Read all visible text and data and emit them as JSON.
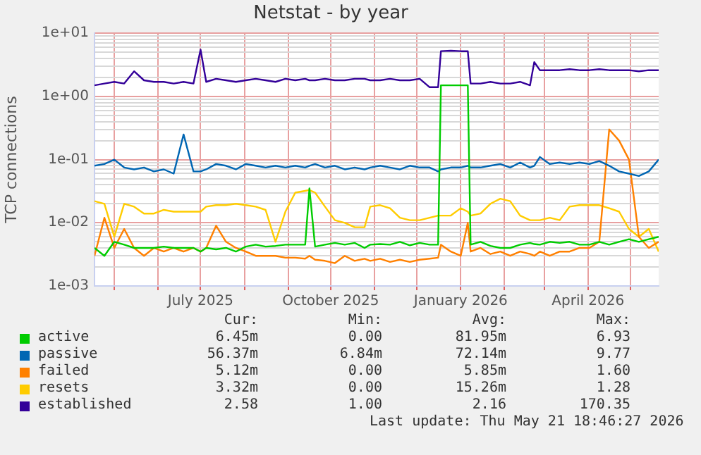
{
  "chart_data": {
    "type": "line",
    "title": "Netstat - by year",
    "ylabel": "TCP connections",
    "log": true,
    "grid": true,
    "legend": "bottom",
    "line_style": "solid",
    "xlim": [
      "2025-04-17",
      "2026-05-21"
    ],
    "xticks": [
      {
        "value": "2025-05-01",
        "label": null
      },
      {
        "value": "2025-06-01",
        "label": null
      },
      {
        "value": "2025-07-01",
        "label": "July 2025"
      },
      {
        "value": "2025-08-01",
        "label": null
      },
      {
        "value": "2025-09-01",
        "label": null
      },
      {
        "value": "2025-10-01",
        "label": "October 2025"
      },
      {
        "value": "2025-11-01",
        "label": null
      },
      {
        "value": "2025-12-01",
        "label": null
      },
      {
        "value": "2026-01-01",
        "label": "January 2026"
      },
      {
        "value": "2026-02-01",
        "label": null
      },
      {
        "value": "2026-03-01",
        "label": null
      },
      {
        "value": "2026-04-01",
        "label": "April 2026"
      },
      {
        "value": "2026-05-01",
        "label": null
      }
    ],
    "ylim": [
      0.001,
      10
    ],
    "yticks": [
      {
        "value": 0.001,
        "label": "1e-03"
      },
      {
        "value": 0.002,
        "label": null
      },
      {
        "value": 0.003,
        "label": null
      },
      {
        "value": 0.004,
        "label": null
      },
      {
        "value": 0.005,
        "label": null
      },
      {
        "value": 0.006,
        "label": null
      },
      {
        "value": 0.007,
        "label": null
      },
      {
        "value": 0.008,
        "label": null
      },
      {
        "value": 0.009,
        "label": null
      },
      {
        "value": 0.01,
        "label": "1e-02"
      },
      {
        "value": 0.02,
        "label": null
      },
      {
        "value": 0.03,
        "label": null
      },
      {
        "value": 0.04,
        "label": null
      },
      {
        "value": 0.05,
        "label": null
      },
      {
        "value": 0.06,
        "label": null
      },
      {
        "value": 0.07,
        "label": null
      },
      {
        "value": 0.08,
        "label": null
      },
      {
        "value": 0.09,
        "label": null
      },
      {
        "value": 0.1,
        "label": "1e-01"
      },
      {
        "value": 0.2,
        "label": null
      },
      {
        "value": 0.3,
        "label": null
      },
      {
        "value": 0.4,
        "label": null
      },
      {
        "value": 0.5,
        "label": null
      },
      {
        "value": 0.6,
        "label": null
      },
      {
        "value": 0.7,
        "label": null
      },
      {
        "value": 0.8,
        "label": null
      },
      {
        "value": 0.9,
        "label": null
      },
      {
        "value": 1,
        "label": "1e+00"
      },
      {
        "value": 2,
        "label": null
      },
      {
        "value": 3,
        "label": null
      },
      {
        "value": 4,
        "label": null
      },
      {
        "value": 5,
        "label": null
      },
      {
        "value": 6,
        "label": null
      },
      {
        "value": 7,
        "label": null
      },
      {
        "value": 8,
        "label": null
      },
      {
        "value": 9,
        "label": null
      },
      {
        "value": 10,
        "label": "1e+01"
      }
    ],
    "x": [
      "2025-04-17",
      "2025-04-24",
      "2025-05-01",
      "2025-05-08",
      "2025-05-15",
      "2025-05-22",
      "2025-05-29",
      "2025-06-05",
      "2025-06-12",
      "2025-06-19",
      "2025-06-26",
      "2025-07-01",
      "2025-07-05",
      "2025-07-12",
      "2025-07-19",
      "2025-07-26",
      "2025-08-02",
      "2025-08-09",
      "2025-08-16",
      "2025-08-23",
      "2025-08-30",
      "2025-09-06",
      "2025-09-13",
      "2025-09-16",
      "2025-09-20",
      "2025-09-27",
      "2025-10-04",
      "2025-10-11",
      "2025-10-18",
      "2025-10-25",
      "2025-10-29",
      "2025-11-05",
      "2025-11-12",
      "2025-11-19",
      "2025-11-26",
      "2025-12-03",
      "2025-12-10",
      "2025-12-16",
      "2025-12-18",
      "2025-12-25",
      "2026-01-01",
      "2026-01-06",
      "2026-01-08",
      "2026-01-15",
      "2026-01-22",
      "2026-01-29",
      "2026-02-05",
      "2026-02-12",
      "2026-02-19",
      "2026-02-22",
      "2026-02-26",
      "2026-03-05",
      "2026-03-12",
      "2026-03-19",
      "2026-03-26",
      "2026-04-02",
      "2026-04-09",
      "2026-04-16",
      "2026-04-23",
      "2026-04-30",
      "2026-05-07",
      "2026-05-14",
      "2026-05-21"
    ],
    "series": [
      {
        "name": "active",
        "color": "#00cc00",
        "values": [
          0.004,
          0.003,
          0.005,
          0.0045,
          0.004,
          0.004,
          0.004,
          0.0042,
          0.004,
          0.004,
          0.004,
          0.0035,
          0.004,
          0.0038,
          0.004,
          0.0035,
          0.0042,
          0.0045,
          0.0042,
          0.0043,
          0.0045,
          0.0045,
          0.0045,
          0.035,
          0.0042,
          0.0045,
          0.0048,
          0.0045,
          0.0048,
          0.004,
          0.0045,
          0.0046,
          0.0045,
          0.005,
          0.0044,
          0.0048,
          0.0045,
          0.0045,
          1.5,
          1.5,
          1.5,
          1.5,
          0.0045,
          0.005,
          0.0043,
          0.004,
          0.004,
          0.0045,
          0.0048,
          0.0046,
          0.0045,
          0.005,
          0.0048,
          0.005,
          0.0045,
          0.0045,
          0.005,
          0.0045,
          0.005,
          0.0055,
          0.005,
          0.0055,
          0.006
        ]
      },
      {
        "name": "passive",
        "color": "#0066b3",
        "values": [
          0.08,
          0.085,
          0.1,
          0.075,
          0.07,
          0.075,
          0.065,
          0.07,
          0.06,
          0.25,
          0.065,
          0.065,
          0.07,
          0.085,
          0.08,
          0.07,
          0.085,
          0.08,
          0.075,
          0.08,
          0.075,
          0.08,
          0.075,
          0.08,
          0.085,
          0.075,
          0.08,
          0.07,
          0.075,
          0.07,
          0.075,
          0.08,
          0.075,
          0.07,
          0.08,
          0.075,
          0.075,
          0.065,
          0.07,
          0.075,
          0.075,
          0.08,
          0.075,
          0.075,
          0.08,
          0.085,
          0.075,
          0.09,
          0.075,
          0.08,
          0.11,
          0.085,
          0.09,
          0.085,
          0.09,
          0.085,
          0.095,
          0.08,
          0.065,
          0.06,
          0.055,
          0.065,
          0.1
        ]
      },
      {
        "name": "failed",
        "color": "#ff8000",
        "values": [
          0.003,
          0.012,
          0.004,
          0.008,
          0.004,
          0.003,
          0.004,
          0.0035,
          0.004,
          0.0035,
          0.004,
          0.0035,
          0.004,
          0.009,
          0.005,
          0.004,
          0.0035,
          0.003,
          0.003,
          0.003,
          0.0028,
          0.0028,
          0.0027,
          0.003,
          0.0026,
          0.0025,
          0.0023,
          0.003,
          0.0025,
          0.0027,
          0.0025,
          0.0027,
          0.0024,
          0.0026,
          0.0024,
          0.0026,
          0.0027,
          0.0028,
          0.0045,
          0.0035,
          0.003,
          0.01,
          0.0035,
          0.004,
          0.0032,
          0.0035,
          0.003,
          0.0035,
          0.0032,
          0.003,
          0.0035,
          0.003,
          0.0035,
          0.0035,
          0.004,
          0.004,
          0.005,
          0.3,
          0.2,
          0.1,
          0.006,
          0.004,
          0.005
        ]
      },
      {
        "name": "resets",
        "color": "#ffcc00",
        "values": [
          0.022,
          0.02,
          0.006,
          0.02,
          0.018,
          0.014,
          0.014,
          0.016,
          0.015,
          0.015,
          0.015,
          0.015,
          0.018,
          0.019,
          0.019,
          0.02,
          0.019,
          0.018,
          0.016,
          0.005,
          0.015,
          0.03,
          0.032,
          0.033,
          0.03,
          0.018,
          0.011,
          0.01,
          0.0085,
          0.0085,
          0.018,
          0.019,
          0.017,
          0.012,
          0.011,
          0.011,
          0.012,
          0.013,
          0.013,
          0.013,
          0.017,
          0.015,
          0.013,
          0.014,
          0.02,
          0.024,
          0.022,
          0.013,
          0.011,
          0.011,
          0.011,
          0.012,
          0.011,
          0.018,
          0.019,
          0.019,
          0.019,
          0.017,
          0.015,
          0.008,
          0.006,
          0.008,
          0.0035
        ]
      },
      {
        "name": "established",
        "color": "#330099",
        "values": [
          1.5,
          1.6,
          1.7,
          1.6,
          2.5,
          1.8,
          1.7,
          1.7,
          1.6,
          1.7,
          1.6,
          5.5,
          1.7,
          1.9,
          1.8,
          1.7,
          1.8,
          1.9,
          1.8,
          1.7,
          1.9,
          1.8,
          1.9,
          1.8,
          1.8,
          1.9,
          1.8,
          1.8,
          1.9,
          1.9,
          1.8,
          1.8,
          1.9,
          1.8,
          1.8,
          1.9,
          1.4,
          1.4,
          5.2,
          5.3,
          5.2,
          5.2,
          1.6,
          1.6,
          1.7,
          1.6,
          1.6,
          1.7,
          1.5,
          3.5,
          2.6,
          2.6,
          2.6,
          2.7,
          2.6,
          2.6,
          2.7,
          2.6,
          2.6,
          2.6,
          2.5,
          2.6,
          2.6
        ]
      }
    ],
    "annotations": [
      "Cur:",
      "Min:",
      "Avg:",
      "Max:",
      "6.45m",
      "0.00",
      "81.95m",
      "6.93",
      "56.37m",
      "6.84m",
      "72.14m",
      "9.77",
      "5.12m",
      "0.00",
      "5.85m",
      "1.60",
      "3.32m",
      "0.00",
      "15.26m",
      "1.28",
      "2.58",
      "1.00",
      "2.16",
      "170.35",
      "Last update: Thu May 21 18:46:27 2026"
    ]
  }
}
